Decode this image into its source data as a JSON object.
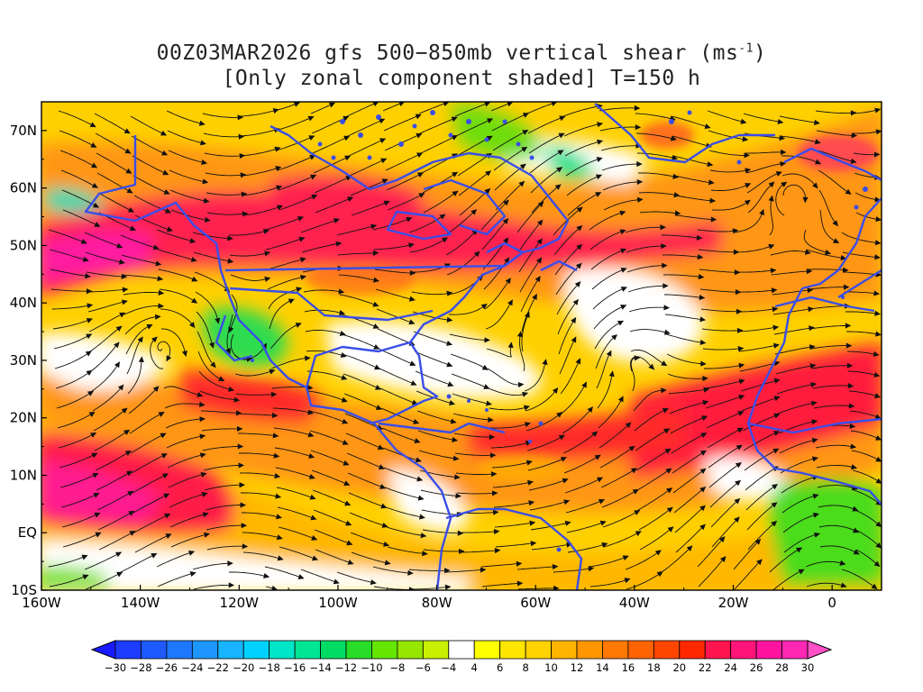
{
  "title": {
    "line1_prefix": "00Z03MAR2026 gfs 500−850mb vertical shear (ms",
    "line1_sup": "-1",
    "line1_suffix": ")",
    "line2": "[Only zonal component shaded] T=150 h"
  },
  "map": {
    "lon_range": [
      -160,
      10
    ],
    "lat_range": [
      -10,
      75
    ],
    "x_ticks": [
      {
        "lon": -160,
        "label": "160W"
      },
      {
        "lon": -140,
        "label": "140W"
      },
      {
        "lon": -120,
        "label": "120W"
      },
      {
        "lon": -100,
        "label": "100W"
      },
      {
        "lon": -80,
        "label": "80W"
      },
      {
        "lon": -60,
        "label": "60W"
      },
      {
        "lon": -40,
        "label": "40W"
      },
      {
        "lon": -20,
        "label": "20W"
      },
      {
        "lon": 0,
        "label": "0"
      }
    ],
    "y_ticks": [
      {
        "lat": -10,
        "label": "10S"
      },
      {
        "lat": 0,
        "label": "EQ"
      },
      {
        "lat": 10,
        "label": "10N"
      },
      {
        "lat": 20,
        "label": "20N"
      },
      {
        "lat": 30,
        "label": "30N"
      },
      {
        "lat": 40,
        "label": "40N"
      },
      {
        "lat": 50,
        "label": "50N"
      },
      {
        "lat": 60,
        "label": "60N"
      },
      {
        "lat": 70,
        "label": "70N"
      }
    ],
    "field": "zonal component of 500-850mb vertical shear",
    "vectors": "streamlines of shear vector",
    "coastline_color": "#3a4ee8"
  },
  "colorbar": {
    "labels": [
      "−30",
      "−28",
      "−26",
      "−24",
      "−22",
      "−20",
      "−18",
      "−16",
      "−14",
      "−12",
      "−10",
      "−8",
      "−6",
      "−4",
      "4",
      "6",
      "8",
      "10",
      "12",
      "14",
      "16",
      "18",
      "20",
      "22",
      "24",
      "26",
      "28",
      "30"
    ],
    "colors": [
      "#1a1aff",
      "#1e3cff",
      "#1e5aff",
      "#1e78ff",
      "#1e96ff",
      "#18b4ff",
      "#00d2ff",
      "#00e6c8",
      "#00e696",
      "#00dc64",
      "#28dc28",
      "#64e600",
      "#96e600",
      "#c8f000",
      "#ffffff",
      "#ffff00",
      "#ffe600",
      "#ffd200",
      "#ffb400",
      "#ff9600",
      "#ff7800",
      "#ff6400",
      "#ff4600",
      "#ff2800",
      "#ff1450",
      "#ff147a",
      "#ff14a0",
      "#ff28b4",
      "#ff50c8"
    ]
  }
}
